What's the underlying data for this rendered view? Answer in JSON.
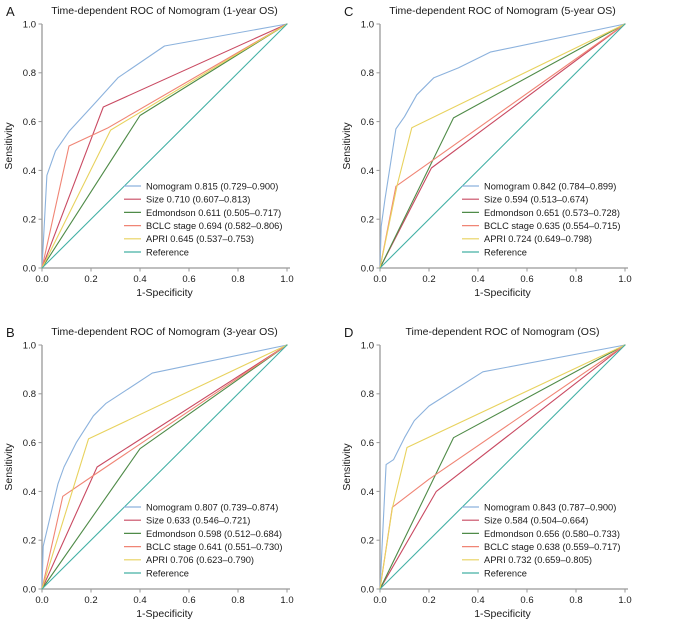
{
  "figure": {
    "background": "#ffffff",
    "axis_color": "#999999",
    "text_color": "#1a1a1a"
  },
  "chart_data": [
    {
      "panel": "A",
      "type": "line",
      "title": "Time-dependent ROC of Nomogram (1-year OS)",
      "xlabel": "1-Specificity",
      "ylabel": "Sensitivity",
      "xlim": [
        0,
        1
      ],
      "ylim": [
        0,
        1
      ],
      "xticks": [
        0.0,
        0.2,
        0.4,
        0.6,
        0.8,
        1.0
      ],
      "yticks": [
        0.0,
        0.2,
        0.4,
        0.6,
        0.8,
        1.0
      ],
      "grid": false,
      "legend_position": "lower right",
      "series": [
        {
          "name": "nomogram",
          "label": "Nomogram 0.815 (0.729–0.900)",
          "color": "#8cb2dd",
          "points": [
            [
              0,
              0
            ],
            [
              0.02,
              0.38
            ],
            [
              0.055,
              0.48
            ],
            [
              0.11,
              0.56
            ],
            [
              0.22,
              0.68
            ],
            [
              0.31,
              0.78
            ],
            [
              0.5,
              0.91
            ],
            [
              1,
              1
            ]
          ]
        },
        {
          "name": "size",
          "label": "Size 0.710 (0.607–0.813)",
          "color": "#c94a62",
          "points": [
            [
              0,
              0
            ],
            [
              0.25,
              0.66
            ],
            [
              1,
              1
            ]
          ]
        },
        {
          "name": "edmondson",
          "label": "Edmondson 0.611 (0.505–0.717)",
          "color": "#4f8b48",
          "points": [
            [
              0,
              0
            ],
            [
              0.4,
              0.625
            ],
            [
              1,
              1
            ]
          ]
        },
        {
          "name": "bclc-stage",
          "label": "BCLC stage 0.694 (0.582–0.806)",
          "color": "#f08575",
          "points": [
            [
              0,
              0
            ],
            [
              0.11,
              0.5
            ],
            [
              0.27,
              0.575
            ],
            [
              1,
              1
            ]
          ]
        },
        {
          "name": "apri",
          "label": "APRI 0.645 (0.537–0.753)",
          "color": "#e8d25e",
          "points": [
            [
              0,
              0
            ],
            [
              0.28,
              0.565
            ],
            [
              1,
              1
            ]
          ]
        },
        {
          "name": "reference",
          "label": "Reference",
          "color": "#43b0a5",
          "points": [
            [
              0,
              0
            ],
            [
              1,
              1
            ]
          ]
        }
      ]
    },
    {
      "panel": "C",
      "type": "line",
      "title": "Time-dependent ROC of Nomogram (5-year OS)",
      "xlabel": "1-Specificity",
      "ylabel": "Sensitivity",
      "xlim": [
        0,
        1
      ],
      "ylim": [
        0,
        1
      ],
      "xticks": [
        0.0,
        0.2,
        0.4,
        0.6,
        0.8,
        1.0
      ],
      "yticks": [
        0.0,
        0.2,
        0.4,
        0.6,
        0.8,
        1.0
      ],
      "grid": false,
      "legend_position": "lower right",
      "series": [
        {
          "name": "nomogram",
          "label": "Nomogram 0.842 (0.784–0.899)",
          "color": "#8cb2dd",
          "points": [
            [
              0,
              0
            ],
            [
              0.005,
              0.17
            ],
            [
              0.02,
              0.28
            ],
            [
              0.045,
              0.44
            ],
            [
              0.065,
              0.57
            ],
            [
              0.1,
              0.62
            ],
            [
              0.15,
              0.71
            ],
            [
              0.22,
              0.78
            ],
            [
              0.32,
              0.82
            ],
            [
              0.45,
              0.885
            ],
            [
              1,
              1
            ]
          ]
        },
        {
          "name": "size",
          "label": "Size 0.594 (0.513–0.674)",
          "color": "#c94a62",
          "points": [
            [
              0,
              0
            ],
            [
              0.21,
              0.41
            ],
            [
              1,
              1
            ]
          ]
        },
        {
          "name": "edmondson",
          "label": "Edmondson 0.651 (0.573–0.728)",
          "color": "#4f8b48",
          "points": [
            [
              0,
              0
            ],
            [
              0.3,
              0.615
            ],
            [
              1,
              1
            ]
          ]
        },
        {
          "name": "bclc-stage",
          "label": "BCLC stage 0.635 (0.554–0.715)",
          "color": "#f08575",
          "points": [
            [
              0,
              0
            ],
            [
              0.065,
              0.335
            ],
            [
              0.22,
              0.445
            ],
            [
              1,
              1
            ]
          ]
        },
        {
          "name": "apri",
          "label": "APRI 0.724 (0.649–0.798)",
          "color": "#e8d25e",
          "points": [
            [
              0,
              0
            ],
            [
              0.07,
              0.34
            ],
            [
              0.13,
              0.575
            ],
            [
              1,
              1
            ]
          ]
        },
        {
          "name": "reference",
          "label": "Reference",
          "color": "#43b0a5",
          "points": [
            [
              0,
              0
            ],
            [
              1,
              1
            ]
          ]
        }
      ]
    },
    {
      "panel": "B",
      "type": "line",
      "title": "Time-dependent ROC of Nomogram (3-year OS)",
      "xlabel": "1-Specificity",
      "ylabel": "Sensitivity",
      "xlim": [
        0,
        1
      ],
      "ylim": [
        0,
        1
      ],
      "xticks": [
        0.0,
        0.2,
        0.4,
        0.6,
        0.8,
        1.0
      ],
      "yticks": [
        0.0,
        0.2,
        0.4,
        0.6,
        0.8,
        1.0
      ],
      "grid": false,
      "legend_position": "lower right",
      "series": [
        {
          "name": "nomogram",
          "label": "Nomogram 0.807 (0.739–0.874)",
          "color": "#8cb2dd",
          "points": [
            [
              0,
              0
            ],
            [
              0.005,
              0.175
            ],
            [
              0.065,
              0.43
            ],
            [
              0.09,
              0.5
            ],
            [
              0.14,
              0.6
            ],
            [
              0.21,
              0.71
            ],
            [
              0.26,
              0.76
            ],
            [
              0.45,
              0.885
            ],
            [
              1,
              1
            ]
          ]
        },
        {
          "name": "size",
          "label": "Size 0.633 (0.546–0.721)",
          "color": "#c94a62",
          "points": [
            [
              0,
              0
            ],
            [
              0.225,
              0.5
            ],
            [
              1,
              1
            ]
          ]
        },
        {
          "name": "edmondson",
          "label": "Edmondson 0.598 (0.512–0.684)",
          "color": "#4f8b48",
          "points": [
            [
              0,
              0
            ],
            [
              0.4,
              0.575
            ],
            [
              1,
              1
            ]
          ]
        },
        {
          "name": "bclc-stage",
          "label": "BCLC stage 0.641 (0.551–0.730)",
          "color": "#f08575",
          "points": [
            [
              0,
              0
            ],
            [
              0.085,
              0.38
            ],
            [
              0.21,
              0.465
            ],
            [
              1,
              1
            ]
          ]
        },
        {
          "name": "apri",
          "label": "APRI 0.706 (0.623–0.790)",
          "color": "#e8d25e",
          "points": [
            [
              0,
              0
            ],
            [
              0.19,
              0.615
            ],
            [
              1,
              1
            ]
          ]
        },
        {
          "name": "reference",
          "label": "Reference",
          "color": "#43b0a5",
          "points": [
            [
              0,
              0
            ],
            [
              1,
              1
            ]
          ]
        }
      ]
    },
    {
      "panel": "D",
      "type": "line",
      "title": "Time-dependent ROC of Nomogram (OS)",
      "xlabel": "1-Specificity",
      "ylabel": "Sensitivity",
      "xlim": [
        0,
        1
      ],
      "ylim": [
        0,
        1
      ],
      "xticks": [
        0.0,
        0.2,
        0.4,
        0.6,
        0.8,
        1.0
      ],
      "yticks": [
        0.0,
        0.2,
        0.4,
        0.6,
        0.8,
        1.0
      ],
      "grid": false,
      "legend_position": "lower right",
      "series": [
        {
          "name": "nomogram",
          "label": "Nomogram 0.843 (0.787–0.900)",
          "color": "#8cb2dd",
          "points": [
            [
              0,
              0
            ],
            [
              0.01,
              0.21
            ],
            [
              0.025,
              0.51
            ],
            [
              0.055,
              0.53
            ],
            [
              0.1,
              0.62
            ],
            [
              0.14,
              0.69
            ],
            [
              0.2,
              0.75
            ],
            [
              0.42,
              0.89
            ],
            [
              1,
              1
            ]
          ]
        },
        {
          "name": "size",
          "label": "Size 0.584 (0.504–0.664)",
          "color": "#c94a62",
          "points": [
            [
              0,
              0
            ],
            [
              0.23,
              0.4
            ],
            [
              1,
              1
            ]
          ]
        },
        {
          "name": "edmondson",
          "label": "Edmondson 0.656 (0.580–0.733)",
          "color": "#4f8b48",
          "points": [
            [
              0,
              0
            ],
            [
              0.3,
              0.62
            ],
            [
              1,
              1
            ]
          ]
        },
        {
          "name": "bclc-stage",
          "label": "BCLC stage 0.638 (0.559–0.717)",
          "color": "#f08575",
          "points": [
            [
              0,
              0
            ],
            [
              0.05,
              0.335
            ],
            [
              0.2,
              0.45
            ],
            [
              1,
              1
            ]
          ]
        },
        {
          "name": "apri",
          "label": "APRI 0.732 (0.659–0.805)",
          "color": "#e8d25e",
          "points": [
            [
              0,
              0
            ],
            [
              0.05,
              0.33
            ],
            [
              0.11,
              0.58
            ],
            [
              1,
              1
            ]
          ]
        },
        {
          "name": "reference",
          "label": "Reference",
          "color": "#43b0a5",
          "points": [
            [
              0,
              0
            ],
            [
              1,
              1
            ]
          ]
        }
      ]
    }
  ]
}
